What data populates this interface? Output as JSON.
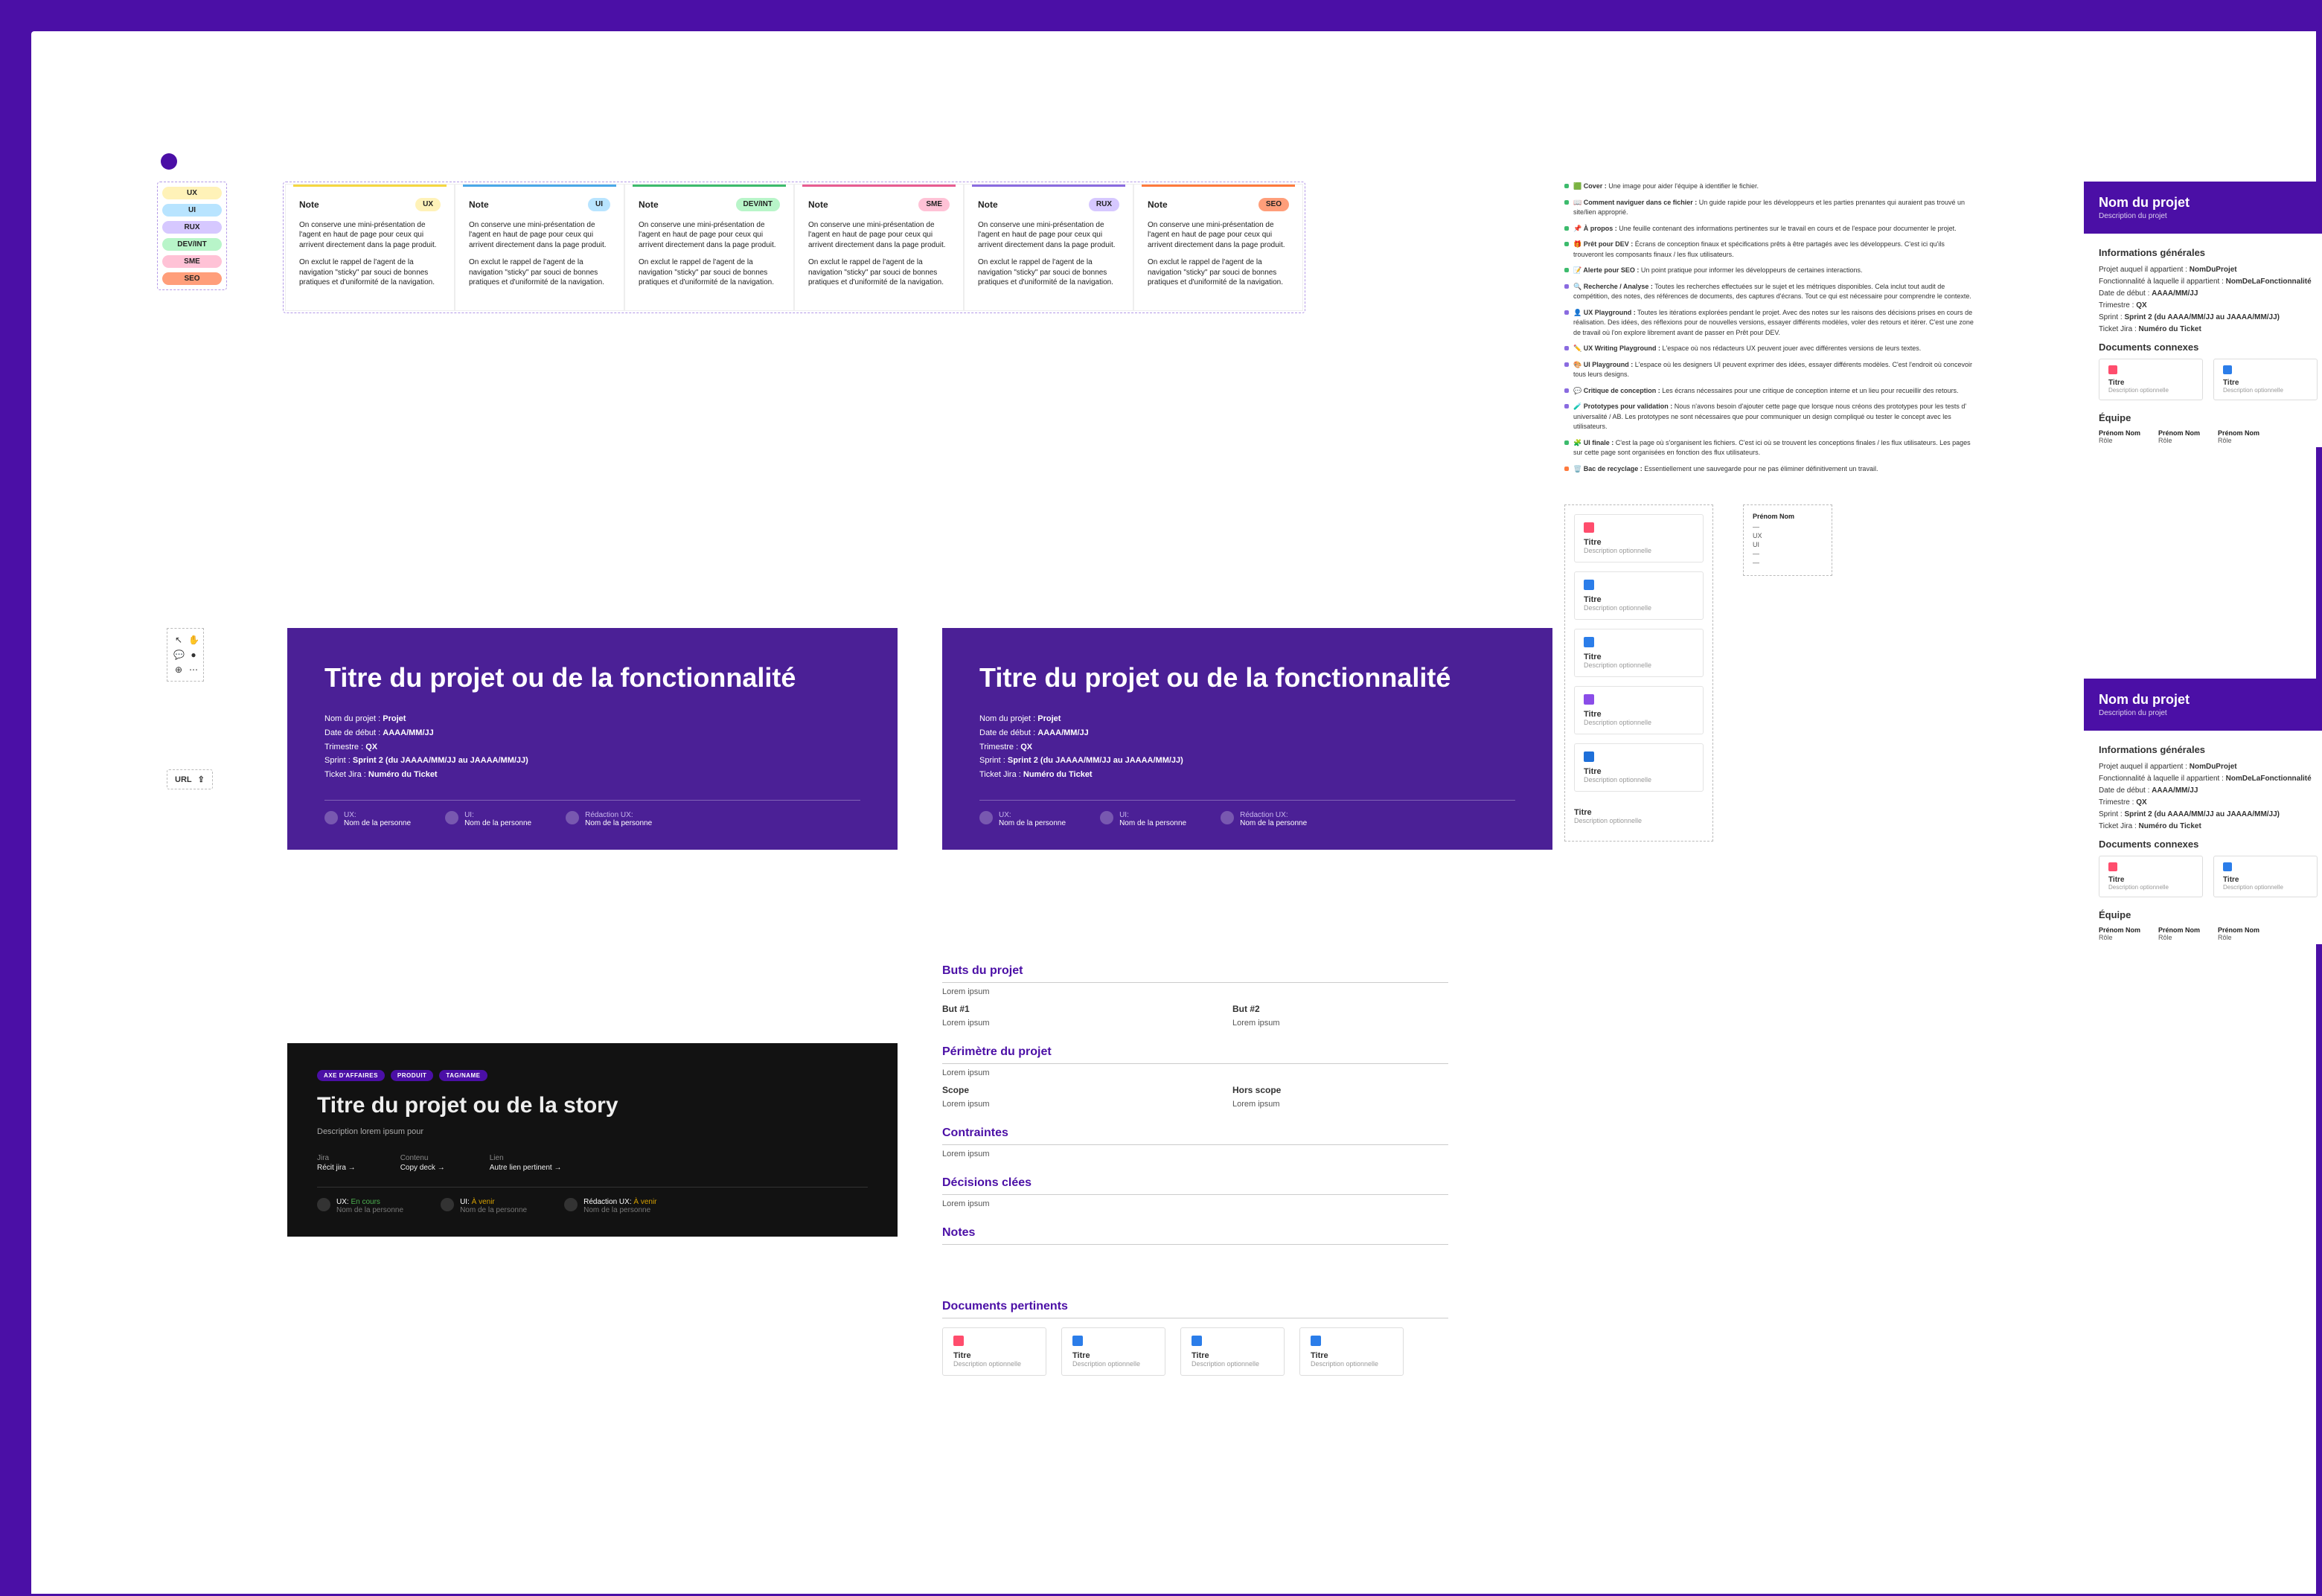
{
  "tags": [
    {
      "label": "UX",
      "bg": "#fff2b8"
    },
    {
      "label": "UI",
      "bg": "#b8e4ff"
    },
    {
      "label": "RUX",
      "bg": "#d6c8ff"
    },
    {
      "label": "DEV/INT",
      "bg": "#b8f5c9"
    },
    {
      "label": "SME",
      "bg": "#ffc2d6"
    },
    {
      "label": "SEO",
      "bg": "#ff9e7a"
    }
  ],
  "notes": [
    {
      "chip": "UX",
      "chipbg": "#fff2b8",
      "stripe": "#f5d742"
    },
    {
      "chip": "UI",
      "chipbg": "#b8e4ff",
      "stripe": "#4aa8e8"
    },
    {
      "chip": "DEV/INT",
      "chipbg": "#b8f5c9",
      "stripe": "#3dbb6d"
    },
    {
      "chip": "SME",
      "chipbg": "#ffc2d6",
      "stripe": "#e85c92"
    },
    {
      "chip": "RUX",
      "chipbg": "#d6c8ff",
      "stripe": "#8a6be0"
    },
    {
      "chip": "SEO",
      "chipbg": "#ff9e7a",
      "stripe": "#ff7a3d"
    }
  ],
  "note_title": "Note",
  "note_p1": "On conserve une mini-présentation de l'agent en haut de page pour ceux qui arrivent directement dans la page produit.",
  "note_p2": "On exclut le rappel de l'agent de la navigation \"sticky\" par souci de bonnes pratiques et d'uniformité de la navigation.",
  "cover_title": "Titre du projet ou de la fonctionnalité",
  "cover_meta_labels": {
    "name": "Nom du projet :",
    "start": "Date de début :",
    "tri": "Trimestre :",
    "sprint": "Sprint :",
    "ticket": "Ticket Jira :"
  },
  "cover_meta_vals": {
    "name": "Projet",
    "start": "AAAA/MM/JJ",
    "tri": "QX",
    "sprint": "Sprint 2 (du JAAAA/MM/JJ au JAAAA/MM/JJ)",
    "ticket": "Numéro du Ticket"
  },
  "role_ux": "UX:",
  "role_ui": "UI:",
  "role_rux": "Rédaction UX:",
  "role_person": "Nom de la personne",
  "story": {
    "chips": [
      "Axe d'affaires",
      "Produit",
      "Tag/Name"
    ],
    "title": "Titre du projet ou de la story",
    "desc": "Description lorem ipsum pour",
    "links": [
      {
        "lbl": "Jira",
        "val": "Récit jira →"
      },
      {
        "lbl": "Contenu",
        "val": "Copy deck →"
      },
      {
        "lbl": "Lien",
        "val": "Autre lien pertinent →"
      }
    ],
    "statuses": {
      "encours": "En cours",
      "avenir": "À venir"
    }
  },
  "detail": {
    "buts_h": "Buts du projet",
    "buts_li": "Lorem ipsum",
    "but1": "But #1",
    "but2": "But #2",
    "but_li": "Lorem ipsum",
    "perim_h": "Périmètre du projet",
    "perim_li": "Lorem ipsum",
    "scope": "Scope",
    "hors": "Hors scope",
    "scope_li": "Lorem ipsum",
    "contr_h": "Contraintes",
    "contr_li": "Lorem ipsum",
    "dec_h": "Décisions clées",
    "dec_li": "Lorem ipsum",
    "notes_h": "Notes",
    "docs_h": "Documents pertinents"
  },
  "doc_title": "Titre",
  "doc_desc": "Description optionnelle",
  "doc_icons": [
    "#ff4d6d",
    "#2b7de9",
    "#2b7de9",
    "#2b7de9"
  ],
  "legend": [
    {
      "c": "#3dbb6d",
      "b": "🟩 Cover :",
      "t": " Une image pour aider l'équipe à identifier le fichier."
    },
    {
      "c": "#3dbb6d",
      "b": "📖 Comment naviguer dans ce fichier :",
      "t": " Un guide rapide pour les développeurs et les parties prenantes qui auraient pas trouvé un site/lien approprié."
    },
    {
      "c": "#3dbb6d",
      "b": "📌 À propos :",
      "t": " Une feuille contenant des informations pertinentes sur le travail en cours et de l'espace pour documenter le projet."
    },
    {
      "c": "#3dbb6d",
      "b": "🎁 Prêt pour DEV :",
      "t": " Écrans de conception finaux et spécifications prêts à être partagés avec les développeurs. C'est ici qu'ils trouveront les composants finaux / les flux utilisateurs."
    },
    {
      "c": "#3dbb6d",
      "b": "📝 Alerte pour SEO :",
      "t": " Un point pratique pour informer les développeurs de certaines interactions."
    },
    {
      "c": "#8a6be0",
      "b": "🔍 Recherche / Analyse :",
      "t": " Toutes les recherches effectuées sur le sujet et les métriques disponibles. Cela inclut tout audit de compétition, des notes, des références de documents, des captures d'écrans. Tout ce qui est nécessaire pour comprendre le contexte."
    },
    {
      "c": "#8a6be0",
      "b": "👤 UX Playground :",
      "t": " Toutes les itérations explorées pendant le projet. Avec des notes sur les raisons des décisions prises en cours de réalisation. Des idées, des réflexions pour de nouvelles versions, essayer différents modèles, voler des retours et itérer. C'est une zone de travail où l'on explore librement avant de passer en Prêt pour DEV."
    },
    {
      "c": "#8a6be0",
      "b": "✏️ UX Writing Playground :",
      "t": " L'espace où nos rédacteurs UX peuvent jouer avec différentes versions de leurs textes."
    },
    {
      "c": "#8a6be0",
      "b": "🎨 UI Playground :",
      "t": " L'espace où les designers UI peuvent exprimer des idées, essayer différents modèles. C'est l'endroit où concevoir tous leurs designs."
    },
    {
      "c": "#8a6be0",
      "b": "💬 Critique de conception :",
      "t": " Les écrans nécessaires pour une critique de conception interne et un lieu pour recueillir des retours."
    },
    {
      "c": "#8a6be0",
      "b": "🧪 Prototypes pour validation :",
      "t": " Nous n'avons besoin d'ajouter cette page que lorsque nous créons des prototypes pour les tests d' universalité / AB. Les prototypes ne sont nécessaires que pour communiquer un design compliqué ou tester le concept avec les utilisateurs."
    },
    {
      "c": "#3dbb6d",
      "b": "🧩 UI finale :",
      "t": " C'est la page où s'organisent les fichiers. C'est ici où se trouvent les conceptions finales / les flux utilisateurs. Les pages sur cette page sont organisées en fonction des flux utilisateurs."
    },
    {
      "c": "#ff7a3d",
      "b": "🗑️ Bac de recyclage :",
      "t": " Essentiellement une sauvegarde pour ne pas éliminer définitivement un travail."
    }
  ],
  "file_types": [
    {
      "ic": "#ff4d6d"
    },
    {
      "ic": "#2b7de9"
    },
    {
      "ic": "#2b7de9"
    },
    {
      "ic": "#8a4de8"
    },
    {
      "ic": "#1e6fd9"
    }
  ],
  "person_name": "Prénom Nom",
  "person_lines": [
    "—",
    "UX",
    "UI",
    "—",
    "—"
  ],
  "proj_panel": {
    "title": "Nom du projet",
    "desc": "Description du projet",
    "h_info": "Informations générales",
    "m1": "Projet auquel il appartient :",
    "v1": "NomDuProjet",
    "m2": "Fonctionnalité à laquelle il appartient :",
    "v2": "NomDeLaFonctionnalité",
    "m3": "Date de début :",
    "v3": "AAAA/MM/JJ",
    "m4": "Trimestre :",
    "v4": "QX",
    "m5": "Sprint :",
    "v5": "Sprint 2 (du AAAA/MM/JJ au JAAAA/MM/JJ)",
    "m6": "Ticket Jira :",
    "v6": "Numéro du Ticket",
    "h_docs": "Documents connexes",
    "h_team": "Équipe",
    "team_role": "Rôle"
  },
  "url_label": "URL"
}
